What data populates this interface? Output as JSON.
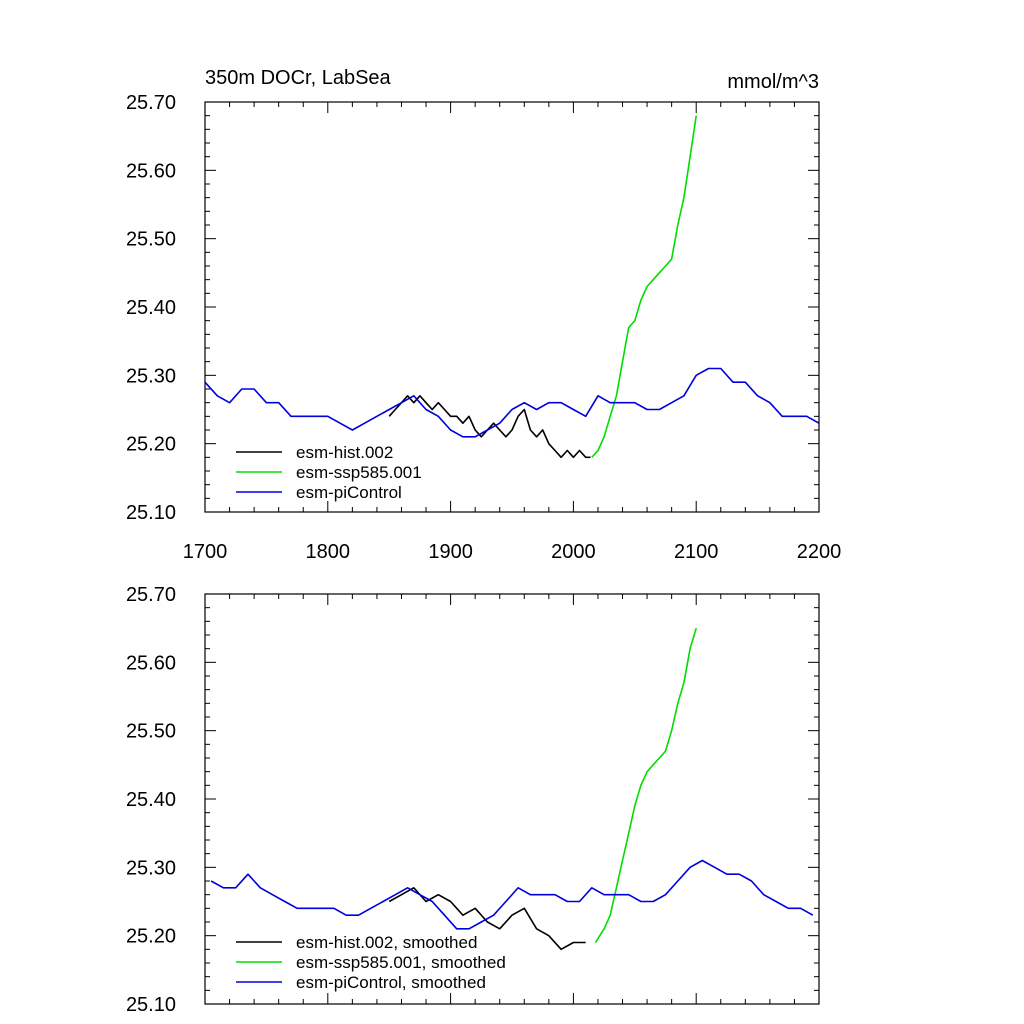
{
  "chart_data": [
    {
      "type": "line",
      "title": "350m DOCr, LabSea",
      "units": "mmol/m^3",
      "xlim": [
        1700,
        2200
      ],
      "ylim": [
        25.1,
        25.7
      ],
      "xticks": [
        1700,
        1800,
        1900,
        2000,
        2100,
        2200
      ],
      "xtick_labels": [
        "1700",
        "1800",
        "1900",
        "2000",
        "2100",
        "2200"
      ],
      "yticks": [
        25.1,
        25.2,
        25.3,
        25.4,
        25.5,
        25.6,
        25.7
      ],
      "ytick_labels": [
        "25.10",
        "25.20",
        "25.30",
        "25.40",
        "25.50",
        "25.60",
        "25.70"
      ],
      "legend_position": "bottom-left",
      "series": [
        {
          "name": "esm-hist.002",
          "color": "#000000",
          "x": [
            1850,
            1855,
            1860,
            1865,
            1870,
            1875,
            1880,
            1885,
            1890,
            1895,
            1900,
            1905,
            1910,
            1915,
            1920,
            1925,
            1930,
            1935,
            1940,
            1945,
            1950,
            1955,
            1960,
            1965,
            1970,
            1975,
            1980,
            1985,
            1990,
            1995,
            2000,
            2005,
            2010,
            2014
          ],
          "y": [
            25.24,
            25.25,
            25.26,
            25.27,
            25.26,
            25.27,
            25.26,
            25.25,
            25.26,
            25.25,
            25.24,
            25.24,
            25.23,
            25.24,
            25.22,
            25.21,
            25.22,
            25.23,
            25.22,
            25.21,
            25.22,
            25.24,
            25.25,
            25.22,
            25.21,
            25.22,
            25.2,
            25.19,
            25.18,
            25.19,
            25.18,
            25.19,
            25.18,
            25.18
          ]
        },
        {
          "name": "esm-ssp585.001",
          "color": "#00dd00",
          "x": [
            2015,
            2020,
            2025,
            2030,
            2035,
            2040,
            2045,
            2050,
            2055,
            2060,
            2065,
            2070,
            2075,
            2080,
            2085,
            2090,
            2095,
            2100
          ],
          "y": [
            25.18,
            25.19,
            25.21,
            25.24,
            25.27,
            25.32,
            25.37,
            25.38,
            25.41,
            25.43,
            25.44,
            25.45,
            25.46,
            25.47,
            25.52,
            25.56,
            25.62,
            25.68
          ]
        },
        {
          "name": "esm-piControl",
          "color": "#0000dd",
          "x": [
            1700,
            1710,
            1720,
            1730,
            1740,
            1750,
            1760,
            1770,
            1780,
            1790,
            1800,
            1810,
            1820,
            1830,
            1840,
            1850,
            1860,
            1870,
            1880,
            1890,
            1900,
            1910,
            1920,
            1930,
            1940,
            1950,
            1960,
            1970,
            1980,
            1990,
            2000,
            2010,
            2020,
            2030,
            2040,
            2050,
            2060,
            2070,
            2080,
            2090,
            2100,
            2110,
            2120,
            2130,
            2140,
            2150,
            2160,
            2170,
            2180,
            2190,
            2200
          ],
          "y": [
            25.29,
            25.27,
            25.26,
            25.28,
            25.28,
            25.26,
            25.26,
            25.24,
            25.24,
            25.24,
            25.24,
            25.23,
            25.22,
            25.23,
            25.24,
            25.25,
            25.26,
            25.27,
            25.25,
            25.24,
            25.22,
            25.21,
            25.21,
            25.22,
            25.23,
            25.25,
            25.26,
            25.25,
            25.26,
            25.26,
            25.25,
            25.24,
            25.27,
            25.26,
            25.26,
            25.26,
            25.25,
            25.25,
            25.26,
            25.27,
            25.3,
            25.31,
            25.31,
            25.29,
            25.29,
            25.27,
            25.26,
            25.24,
            25.24,
            25.24,
            25.23
          ]
        }
      ]
    },
    {
      "type": "line",
      "title": "",
      "xlim": [
        1700,
        2200
      ],
      "ylim": [
        25.1,
        25.7
      ],
      "yticks": [
        25.1,
        25.2,
        25.3,
        25.4,
        25.5,
        25.6,
        25.7
      ],
      "ytick_labels": [
        "25.10",
        "25.20",
        "25.30",
        "25.40",
        "25.50",
        "25.60",
        "25.70"
      ],
      "legend_position": "bottom-left",
      "series": [
        {
          "name": "esm-hist.002, smoothed",
          "color": "#000000",
          "x": [
            1850,
            1860,
            1870,
            1880,
            1890,
            1900,
            1910,
            1920,
            1930,
            1940,
            1950,
            1960,
            1970,
            1980,
            1990,
            2000,
            2010
          ],
          "y": [
            25.25,
            25.26,
            25.27,
            25.25,
            25.26,
            25.25,
            25.23,
            25.24,
            25.22,
            25.21,
            25.23,
            25.24,
            25.21,
            25.2,
            25.18,
            25.19,
            25.19
          ]
        },
        {
          "name": "esm-ssp585.001, smoothed",
          "color": "#00dd00",
          "x": [
            2018,
            2025,
            2030,
            2035,
            2040,
            2045,
            2050,
            2055,
            2060,
            2065,
            2070,
            2075,
            2080,
            2085,
            2090,
            2095,
            2100
          ],
          "y": [
            25.19,
            25.21,
            25.23,
            25.27,
            25.31,
            25.35,
            25.39,
            25.42,
            25.44,
            25.45,
            25.46,
            25.47,
            25.5,
            25.54,
            25.57,
            25.62,
            25.65
          ]
        },
        {
          "name": "esm-piControl, smoothed",
          "color": "#0000dd",
          "x": [
            1705,
            1715,
            1725,
            1735,
            1745,
            1755,
            1765,
            1775,
            1785,
            1795,
            1805,
            1815,
            1825,
            1835,
            1845,
            1855,
            1865,
            1875,
            1885,
            1895,
            1905,
            1915,
            1925,
            1935,
            1945,
            1955,
            1965,
            1975,
            1985,
            1995,
            2005,
            2015,
            2025,
            2035,
            2045,
            2055,
            2065,
            2075,
            2085,
            2095,
            2105,
            2115,
            2125,
            2135,
            2145,
            2155,
            2165,
            2175,
            2185,
            2195
          ],
          "y": [
            25.28,
            25.27,
            25.27,
            25.29,
            25.27,
            25.26,
            25.25,
            25.24,
            25.24,
            25.24,
            25.24,
            25.23,
            25.23,
            25.24,
            25.25,
            25.26,
            25.27,
            25.26,
            25.25,
            25.23,
            25.21,
            25.21,
            25.22,
            25.23,
            25.25,
            25.27,
            25.26,
            25.26,
            25.26,
            25.25,
            25.25,
            25.27,
            25.26,
            25.26,
            25.26,
            25.25,
            25.25,
            25.26,
            25.28,
            25.3,
            25.31,
            25.3,
            25.29,
            25.29,
            25.28,
            25.26,
            25.25,
            25.24,
            25.24,
            25.23
          ]
        }
      ]
    }
  ]
}
